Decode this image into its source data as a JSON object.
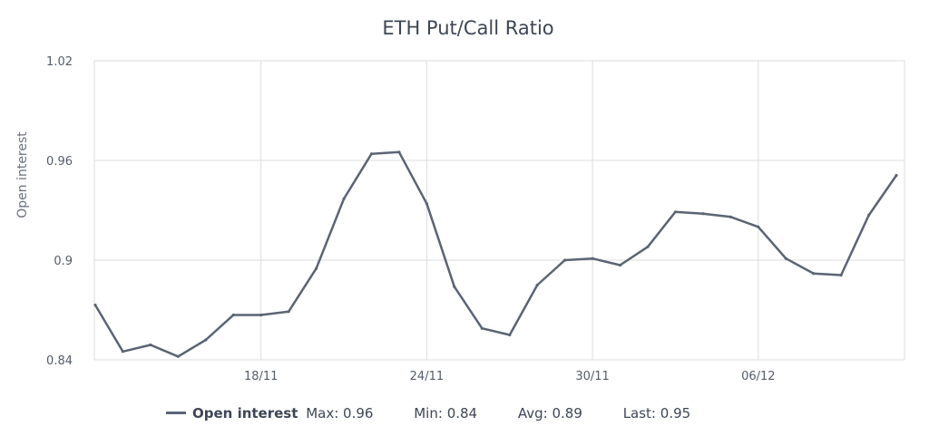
{
  "chart_data": {
    "type": "line",
    "title": "ETH Put/Call Ratio",
    "xlabel": "",
    "ylabel": "Open interest",
    "ylim": [
      0.84,
      1.02
    ],
    "yticks": [
      "0.84",
      "0.9",
      "0.96",
      "1.02"
    ],
    "xticks": [
      "18/11",
      "24/11",
      "30/11",
      "06/12"
    ],
    "x": [
      "12/11",
      "13/11",
      "14/11",
      "15/11",
      "16/11",
      "17/11",
      "18/11",
      "19/11",
      "20/11",
      "21/11",
      "22/11",
      "23/11",
      "24/11",
      "25/11",
      "26/11",
      "27/11",
      "28/11",
      "29/11",
      "30/11",
      "01/12",
      "02/12",
      "03/12",
      "04/12",
      "05/12",
      "06/12",
      "07/12",
      "08/12",
      "09/12",
      "10/12",
      "11/12"
    ],
    "grid": true,
    "series": [
      {
        "name": "Open interest",
        "color": "#5b6473",
        "values": [
          0.873,
          0.845,
          0.849,
          0.842,
          0.852,
          0.867,
          0.867,
          0.869,
          0.895,
          0.937,
          0.964,
          0.965,
          0.934,
          0.884,
          0.859,
          0.855,
          0.885,
          0.9,
          0.901,
          0.897,
          0.908,
          0.929,
          0.928,
          0.926,
          0.92,
          0.901,
          0.892,
          0.891,
          0.927,
          0.951
        ]
      }
    ]
  },
  "legend": {
    "series_name": "Open interest",
    "max_label": "Max:",
    "max_value": "0.96",
    "min_label": "Min:",
    "min_value": "0.84",
    "avg_label": "Avg:",
    "avg_value": "0.89",
    "last_label": "Last:",
    "last_value": "0.95"
  }
}
